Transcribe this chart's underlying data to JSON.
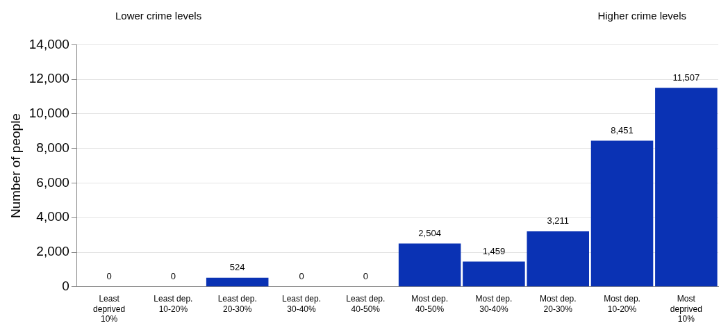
{
  "chart_data": {
    "type": "bar",
    "categories": [
      "Least deprived 10%",
      "Least dep. 10-20%",
      "Least dep. 20-30%",
      "Least dep. 30-40%",
      "Least dep. 40-50%",
      "Most dep. 40-50%",
      "Most dep. 30-40%",
      "Most dep. 20-30%",
      "Most dep. 10-20%",
      "Most deprived 10%"
    ],
    "values": [
      0,
      0,
      524,
      0,
      0,
      2504,
      1459,
      3211,
      8451,
      11507
    ],
    "value_labels": [
      "0",
      "0",
      "524",
      "0",
      "0",
      "2,504",
      "1,459",
      "3,211",
      "8,451",
      "11,507"
    ],
    "color": "#0a32b4",
    "ylabel": "Number of people",
    "ylim": [
      0,
      14000
    ],
    "yticks": [
      0,
      {
        "value": 2000,
        "label": "2,000"
      },
      {
        "value": 4000,
        "label": "4,000"
      },
      {
        "value": 6000,
        "label": "6,000"
      },
      {
        "value": 8000,
        "label": "8,000"
      },
      {
        "value": 10000,
        "label": "10,000"
      },
      {
        "value": 12000,
        "label": "12,000"
      },
      {
        "value": 14000,
        "label": "14,000"
      }
    ],
    "grid": "y",
    "legend": false,
    "annotations": [
      "Lower crime levels",
      "Higher crime levels"
    ]
  }
}
